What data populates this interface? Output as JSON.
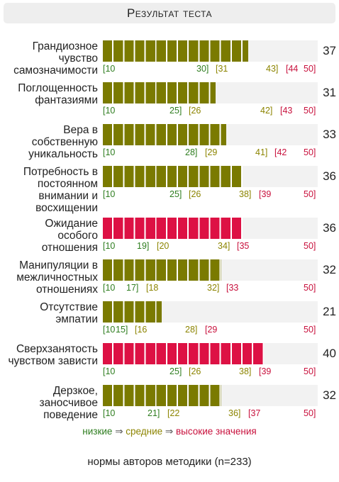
{
  "title": "Результат теста",
  "colors": {
    "normal": "#7a7a00",
    "high": "#dd1144",
    "low_text": "#2e7d1f",
    "mid_text": "#8c8400",
    "high_text": "#c8103c",
    "track": "#f2f2f2"
  },
  "scale_max": 50,
  "scale_min": 10,
  "rows": [
    {
      "label": "Грандиозное чувство самозначимости",
      "score": "37",
      "value": 37,
      "level": "normal",
      "ticks": [
        {
          "text": "[10",
          "color": "low"
        },
        {
          "text": "30]",
          "color": "low"
        },
        {
          "text": "[31",
          "color": "mid"
        },
        {
          "text": "43]",
          "color": "mid"
        },
        {
          "text": "[44",
          "color": "high"
        },
        {
          "text": "50]",
          "color": "high"
        }
      ]
    },
    {
      "label": "Поглощенность фантазиями",
      "score": "31",
      "value": 31,
      "level": "normal",
      "ticks": [
        {
          "text": "[10",
          "color": "low"
        },
        {
          "text": "25]",
          "color": "low"
        },
        {
          "text": "[26",
          "color": "mid"
        },
        {
          "text": "42]",
          "color": "mid"
        },
        {
          "text": "[43",
          "color": "high"
        },
        {
          "text": "50]",
          "color": "high"
        }
      ]
    },
    {
      "label": "Вера в собственную уникальность",
      "score": "33",
      "value": 33,
      "level": "normal",
      "ticks": [
        {
          "text": "[10",
          "color": "low"
        },
        {
          "text": "28]",
          "color": "low"
        },
        {
          "text": "[29",
          "color": "mid"
        },
        {
          "text": "41]",
          "color": "mid"
        },
        {
          "text": "[42",
          "color": "high"
        },
        {
          "text": "50]",
          "color": "high"
        }
      ]
    },
    {
      "label": "Потребность в постоянном внимании и восхищении",
      "score": "36",
      "value": 36,
      "level": "normal",
      "ticks": [
        {
          "text": "[10",
          "color": "low"
        },
        {
          "text": "25]",
          "color": "low"
        },
        {
          "text": "[26",
          "color": "mid"
        },
        {
          "text": "38]",
          "color": "mid"
        },
        {
          "text": "[39",
          "color": "high"
        },
        {
          "text": "50]",
          "color": "high"
        }
      ]
    },
    {
      "label": "Ожидание особого отношения",
      "score": "36",
      "value": 36,
      "level": "high",
      "ticks": [
        {
          "text": "[10",
          "color": "low"
        },
        {
          "text": "19]",
          "color": "low"
        },
        {
          "text": "[20",
          "color": "mid"
        },
        {
          "text": "34]",
          "color": "mid"
        },
        {
          "text": "[35",
          "color": "high"
        },
        {
          "text": "50]",
          "color": "high"
        }
      ]
    },
    {
      "label": "Манипуляции в межличностных отношениях",
      "score": "32",
      "value": 32,
      "level": "normal",
      "ticks": [
        {
          "text": "[10",
          "color": "low"
        },
        {
          "text": "17]",
          "color": "low"
        },
        {
          "text": "[18",
          "color": "mid"
        },
        {
          "text": "32]",
          "color": "mid"
        },
        {
          "text": "[33",
          "color": "high"
        },
        {
          "text": "50]",
          "color": "high"
        }
      ]
    },
    {
      "label": "Отсутствие эмпатии",
      "score": "21",
      "value": 21,
      "level": "normal",
      "ticks": [
        {
          "text": "[10",
          "color": "low"
        },
        {
          "text": "15]",
          "color": "low"
        },
        {
          "text": "[16",
          "color": "mid"
        },
        {
          "text": "28]",
          "color": "mid"
        },
        {
          "text": "[29",
          "color": "high"
        },
        {
          "text": "50]",
          "color": "high"
        }
      ]
    },
    {
      "label": "Сверхзанятость чувством зависти",
      "score": "40",
      "value": 40,
      "level": "high",
      "ticks": [
        {
          "text": "[10",
          "color": "low"
        },
        {
          "text": "25]",
          "color": "low"
        },
        {
          "text": "[26",
          "color": "mid"
        },
        {
          "text": "38]",
          "color": "mid"
        },
        {
          "text": "[39",
          "color": "high"
        },
        {
          "text": "50]",
          "color": "high"
        }
      ]
    },
    {
      "label": "Дерзкое, заносчивое поведение",
      "score": "32",
      "value": 32,
      "level": "normal",
      "ticks": [
        {
          "text": "[10",
          "color": "low"
        },
        {
          "text": "21]",
          "color": "low"
        },
        {
          "text": "[22",
          "color": "mid"
        },
        {
          "text": "36]",
          "color": "mid"
        },
        {
          "text": "[37",
          "color": "high"
        },
        {
          "text": "50]",
          "color": "high"
        }
      ]
    }
  ],
  "legend": {
    "low": "низкие",
    "arrow": "⇒",
    "mid": "средние",
    "high": "высокие значения"
  },
  "footer": "нормы авторов методики (n=233)"
}
